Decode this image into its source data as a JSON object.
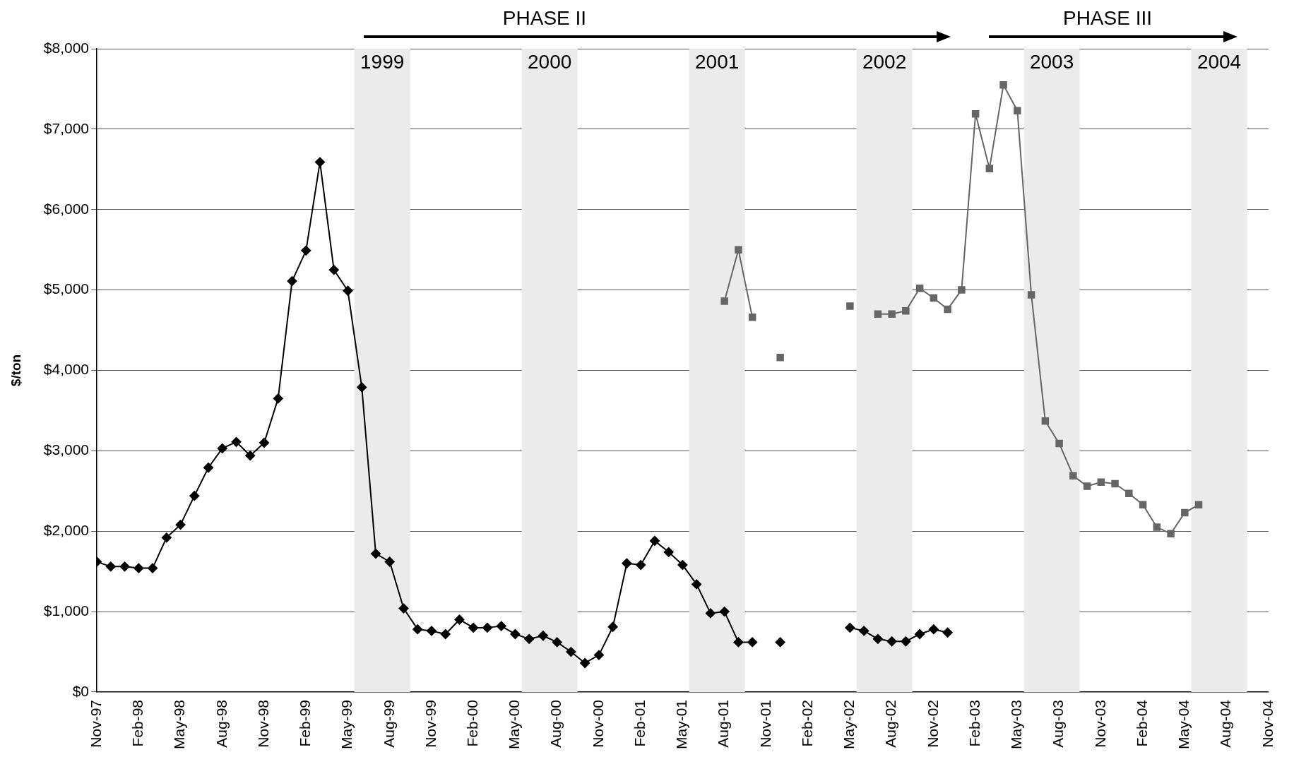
{
  "chart_data": {
    "type": "line",
    "ylabel": "$/ton",
    "grid": "y",
    "annotations": [
      "PHASE II",
      "PHASE III"
    ],
    "x": [
      "1997-11",
      "1997-12",
      "1998-01",
      "1998-02",
      "1998-03",
      "1998-04",
      "1998-05",
      "1998-06",
      "1998-07",
      "1998-08",
      "1998-09",
      "1998-10",
      "1998-11",
      "1998-12",
      "1999-01",
      "1999-02",
      "1999-03",
      "1999-04",
      "1999-05",
      "1999-06",
      "1999-07",
      "1999-08",
      "1999-09",
      "1999-10",
      "1999-11",
      "1999-12",
      "2000-01",
      "2000-02",
      "2000-03",
      "2000-04",
      "2000-05",
      "2000-06",
      "2000-07",
      "2000-08",
      "2000-09",
      "2000-10",
      "2000-11",
      "2000-12",
      "2001-01",
      "2001-02",
      "2001-03",
      "2001-04",
      "2001-05",
      "2001-06",
      "2001-07",
      "2001-08",
      "2001-09",
      "2001-10",
      "2001-11",
      "2001-12",
      "2002-01",
      "2002-02",
      "2002-03",
      "2002-04",
      "2002-05",
      "2002-06",
      "2002-07",
      "2002-08",
      "2002-09",
      "2002-10",
      "2002-11",
      "2002-12",
      "2003-01",
      "2003-02",
      "2003-03",
      "2003-04",
      "2003-05",
      "2003-06",
      "2003-07",
      "2003-08",
      "2003-09",
      "2003-10",
      "2003-11",
      "2003-12",
      "2004-01",
      "2004-02",
      "2004-03",
      "2004-04",
      "2004-05",
      "2004-06"
    ],
    "series": [
      {
        "color": "#000000",
        "marker": "diamond",
        "values": [
          1620,
          1560,
          1560,
          1540,
          1540,
          1920,
          2080,
          2440,
          2790,
          3030,
          3110,
          2940,
          3100,
          3650,
          5110,
          5490,
          6590,
          5250,
          4990,
          3790,
          1720,
          1620,
          1040,
          780,
          760,
          720,
          900,
          800,
          800,
          820,
          720,
          660,
          700,
          620,
          500,
          360,
          460,
          810,
          1600,
          1580,
          1880,
          1740,
          1580,
          1340,
          980,
          1000,
          620,
          620,
          null,
          620,
          null,
          null,
          null,
          null,
          800,
          760,
          660,
          630,
          630,
          720,
          780,
          740,
          null,
          null,
          null,
          null,
          null,
          null,
          null,
          null,
          null,
          null,
          null,
          null,
          null,
          null,
          null,
          null,
          null,
          null
        ]
      },
      {
        "color": "#666666",
        "marker": "square",
        "values": [
          null,
          null,
          null,
          null,
          null,
          null,
          null,
          null,
          null,
          null,
          null,
          null,
          null,
          null,
          null,
          null,
          null,
          null,
          null,
          null,
          null,
          null,
          null,
          null,
          null,
          null,
          null,
          null,
          null,
          null,
          null,
          null,
          null,
          null,
          null,
          null,
          null,
          null,
          null,
          null,
          null,
          null,
          null,
          null,
          null,
          4860,
          5500,
          4660,
          null,
          4160,
          null,
          null,
          null,
          null,
          4800,
          null,
          4700,
          4700,
          4740,
          5020,
          4900,
          4760,
          5000,
          7190,
          6510,
          7550,
          7230,
          4940,
          3370,
          3090,
          2690,
          2560,
          2610,
          2590,
          2470,
          2330,
          2050,
          1970,
          2230,
          2330
        ]
      }
    ],
    "xlim": [
      "1997-11",
      "2004-11"
    ],
    "xticks": [
      {
        "value": "1997-11",
        "label": "Nov-97"
      },
      {
        "value": "1998-02",
        "label": "Feb-98"
      },
      {
        "value": "1998-05",
        "label": "May-98"
      },
      {
        "value": "1998-08",
        "label": "Aug-98"
      },
      {
        "value": "1998-11",
        "label": "Nov-98"
      },
      {
        "value": "1999-02",
        "label": "Feb-99"
      },
      {
        "value": "1999-05",
        "label": "May-99"
      },
      {
        "value": "1999-08",
        "label": "Aug-99"
      },
      {
        "value": "1999-11",
        "label": "Nov-99"
      },
      {
        "value": "2000-02",
        "label": "Feb-00"
      },
      {
        "value": "2000-05",
        "label": "May-00"
      },
      {
        "value": "2000-08",
        "label": "Aug-00"
      },
      {
        "value": "2000-11",
        "label": "Nov-00"
      },
      {
        "value": "2001-02",
        "label": "Feb-01"
      },
      {
        "value": "2001-05",
        "label": "May-01"
      },
      {
        "value": "2001-08",
        "label": "Aug-01"
      },
      {
        "value": "2001-11",
        "label": "Nov-01"
      },
      {
        "value": "2002-02",
        "label": "Feb-02"
      },
      {
        "value": "2002-05",
        "label": "May-02"
      },
      {
        "value": "2002-08",
        "label": "Aug-02"
      },
      {
        "value": "2002-11",
        "label": "Nov-02"
      },
      {
        "value": "2003-02",
        "label": "Feb-03"
      },
      {
        "value": "2003-05",
        "label": "May-03"
      },
      {
        "value": "2003-08",
        "label": "Aug-03"
      },
      {
        "value": "2003-11",
        "label": "Nov-03"
      },
      {
        "value": "2004-02",
        "label": "Feb-04"
      },
      {
        "value": "2004-05",
        "label": "May-04"
      },
      {
        "value": "2004-08",
        "label": "Aug-04"
      },
      {
        "value": "2004-11",
        "label": "Nov-04"
      }
    ],
    "ylim": [
      0,
      8000
    ],
    "yticks": [
      {
        "value": 0,
        "label": "$0"
      },
      {
        "value": 1000,
        "label": "$1,000"
      },
      {
        "value": 2000,
        "label": "$2,000"
      },
      {
        "value": 3000,
        "label": "$3,000"
      },
      {
        "value": 4000,
        "label": "$4,000"
      },
      {
        "value": 5000,
        "label": "$5,000"
      },
      {
        "value": 6000,
        "label": "$6,000"
      },
      {
        "value": 7000,
        "label": "$7,000"
      },
      {
        "value": 8000,
        "label": "$8,000"
      }
    ],
    "bands": [
      {
        "axis": "x",
        "from": "1999-05-15",
        "to": "1999-09-15",
        "label": "1999",
        "color": "#ebebeb"
      },
      {
        "axis": "x",
        "from": "2000-05-15",
        "to": "2000-09-15",
        "label": "2000",
        "color": "#ebebeb"
      },
      {
        "axis": "x",
        "from": "2001-05-15",
        "to": "2001-09-15",
        "label": "2001",
        "color": "#ebebeb"
      },
      {
        "axis": "x",
        "from": "2002-05-15",
        "to": "2002-09-15",
        "label": "2002",
        "color": "#ebebeb"
      },
      {
        "axis": "x",
        "from": "2003-05-15",
        "to": "2003-09-15",
        "label": "2003",
        "color": "#ebebeb"
      },
      {
        "axis": "x",
        "from": "2004-05-15",
        "to": "2004-09-15",
        "label": "2004",
        "color": "#ebebeb"
      }
    ]
  }
}
